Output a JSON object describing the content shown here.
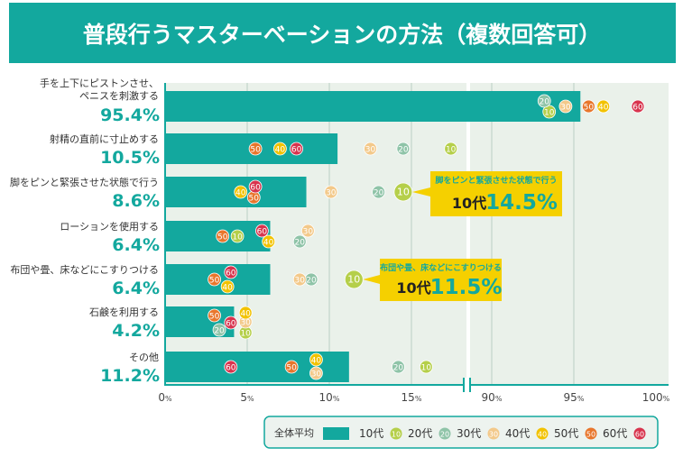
{
  "chart_data": {
    "type": "bar",
    "title": "普段行うマスターベーションの方法（複数回答可）",
    "orientation": "horizontal",
    "axis": {
      "ticks": [
        "0%",
        "5%",
        "10%",
        "15%",
        "90%",
        "95%",
        "100%"
      ],
      "break": "between 15% and 90%"
    },
    "grid": true,
    "categories": [
      {
        "label": [
          "手を上下にピストンさせ、",
          "ペニスを刺激する"
        ],
        "pct_label": "95.4%"
      },
      {
        "label": [
          "射精の直前に寸止めする"
        ],
        "pct_label": "10.5%"
      },
      {
        "label": [
          "脚をピンと緊張させた状態で行う"
        ],
        "pct_label": "8.6%"
      },
      {
        "label": [
          "ローションを使用する"
        ],
        "pct_label": "6.4%"
      },
      {
        "label": [
          "布団や畳、床などにこすりつける"
        ],
        "pct_label": "6.4%"
      },
      {
        "label": [
          "石鹸を利用する"
        ],
        "pct_label": "4.2%"
      },
      {
        "label": [
          "その他"
        ],
        "pct_label": "11.2%"
      }
    ],
    "overall": [
      95.4,
      10.5,
      8.6,
      6.4,
      6.4,
      4.2,
      11.2
    ],
    "series": [
      {
        "name": "10代",
        "marker": "10",
        "color": "#b5cf4a",
        "values": [
          93.5,
          17.4,
          14.5,
          4.4,
          11.5,
          4.9,
          15.9
        ]
      },
      {
        "name": "20代",
        "marker": "20",
        "color": "#8fc4a8",
        "values": [
          93.2,
          14.5,
          13.0,
          8.2,
          8.9,
          3.3,
          14.2
        ]
      },
      {
        "name": "30代",
        "marker": "30",
        "color": "#f3c98a",
        "values": [
          94.5,
          12.5,
          10.1,
          8.7,
          8.2,
          4.9,
          9.2
        ]
      },
      {
        "name": "40代",
        "marker": "40",
        "color": "#f2c200",
        "values": [
          96.8,
          7.0,
          4.6,
          6.3,
          3.8,
          4.9,
          9.2
        ]
      },
      {
        "name": "50代",
        "marker": "50",
        "color": "#e8762c",
        "values": [
          95.9,
          5.5,
          5.4,
          3.5,
          3.0,
          3.0,
          7.7
        ]
      },
      {
        "name": "60代",
        "marker": "60",
        "color": "#d8344e",
        "values": [
          98.9,
          8.0,
          5.5,
          5.9,
          4.0,
          4.0,
          4.0
        ]
      }
    ],
    "legend": {
      "overall_label": "全体平均",
      "placement": "bottom-right"
    },
    "callouts": [
      {
        "title": "脚をピンと緊張させた状態で行う",
        "age": "10代",
        "value": "14.5%"
      },
      {
        "title": "布団や畳、床などにこすりつける",
        "age": "10代",
        "value": "11.5%"
      }
    ],
    "colors": {
      "bar": "#13a89e",
      "plot_bg": "#eaf1ea",
      "callout": "#f5d000"
    }
  }
}
